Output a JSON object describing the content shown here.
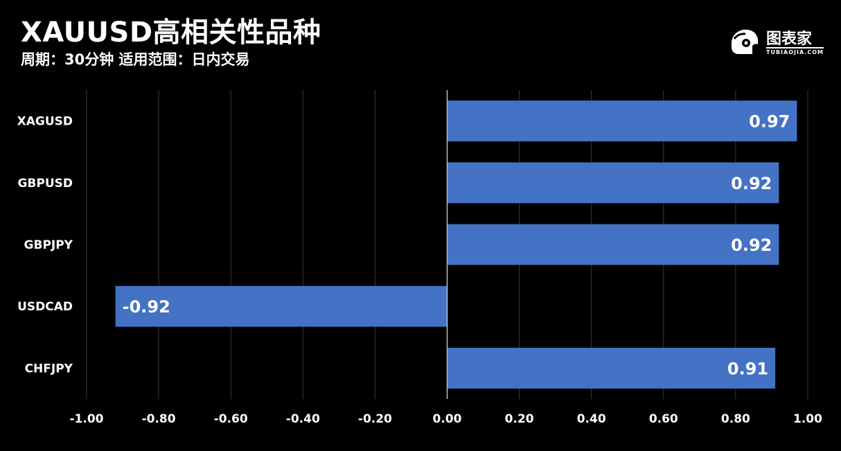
{
  "header": {
    "title": "XAUUSD高相关性品种",
    "subtitle": "周期：30分钟 适用范围：日内交易"
  },
  "brand": {
    "name": "图表家",
    "tagline": "TUBIAOJIA.COM",
    "icon": "brand-logo-icon"
  },
  "colors": {
    "background": "#000000",
    "bar": "#4472C4",
    "grid": "#3a3a3a",
    "text": "#ffffff"
  },
  "chart_data": {
    "type": "bar",
    "orientation": "horizontal",
    "categories": [
      "XAGUSD",
      "GBPUSD",
      "GBPJPY",
      "USDCAD",
      "CHFJPY"
    ],
    "values": [
      0.97,
      0.92,
      0.92,
      -0.92,
      0.91
    ],
    "data_labels": [
      "0.97",
      "0.92",
      "0.92",
      "-0.92",
      "0.91"
    ],
    "xlim": [
      -1.0,
      1.0
    ],
    "xticks": [
      -1.0,
      -0.8,
      -0.6,
      -0.4,
      -0.2,
      0.0,
      0.2,
      0.4,
      0.6,
      0.8,
      1.0
    ],
    "xtick_labels": [
      "-1.00",
      "-0.80",
      "-0.60",
      "-0.40",
      "-0.20",
      "0.00",
      "0.20",
      "0.40",
      "0.60",
      "0.80",
      "1.00"
    ],
    "grid": true,
    "legend": "none"
  }
}
